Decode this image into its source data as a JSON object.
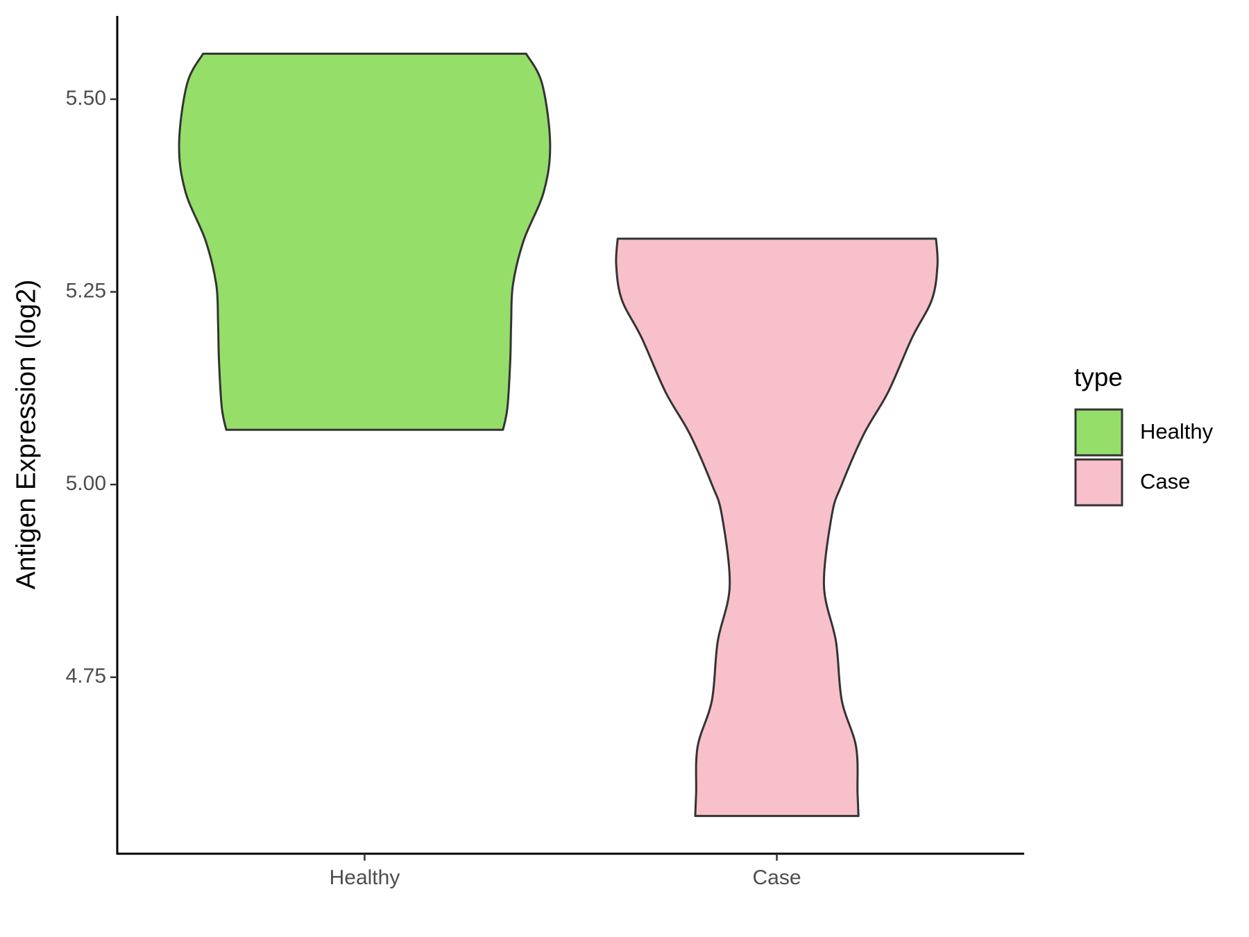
{
  "chart_data": {
    "type": "violin",
    "y_label": "Antigen Expression (log2)",
    "categories": [
      "Healthy",
      "Case"
    ],
    "legend_title": "type",
    "legend_position": "right",
    "grid": false,
    "ylim": [
      4.521,
      5.608
    ],
    "yticks": [
      4.75,
      {
        "value": 5,
        "label": "5.00"
      },
      5.25,
      {
        "value": 5.5,
        "label": "5.50"
      }
    ],
    "series": [
      {
        "name": "Healthy",
        "color": "#95de6a",
        "y": [
          5.559,
          5.52,
          5.442,
          5.38,
          5.317,
          5.26,
          5.21,
          5.16,
          5.1,
          5.071
        ],
        "density": [
          0.871,
          0.957,
          1.0,
          0.966,
          0.858,
          0.8,
          0.79,
          0.785,
          0.77,
          0.746
        ]
      },
      {
        "name": "Case",
        "color": "#f8c0cb",
        "y": [
          5.319,
          5.285,
          5.24,
          5.19,
          5.12,
          5.066,
          5.0,
          4.961,
          4.869,
          4.796,
          4.72,
          4.66,
          4.6,
          4.57
        ],
        "density": [
          0.858,
          0.866,
          0.836,
          0.728,
          0.6,
          0.47,
          0.35,
          0.297,
          0.254,
          0.319,
          0.35,
          0.427,
          0.435,
          0.44
        ]
      }
    ]
  }
}
